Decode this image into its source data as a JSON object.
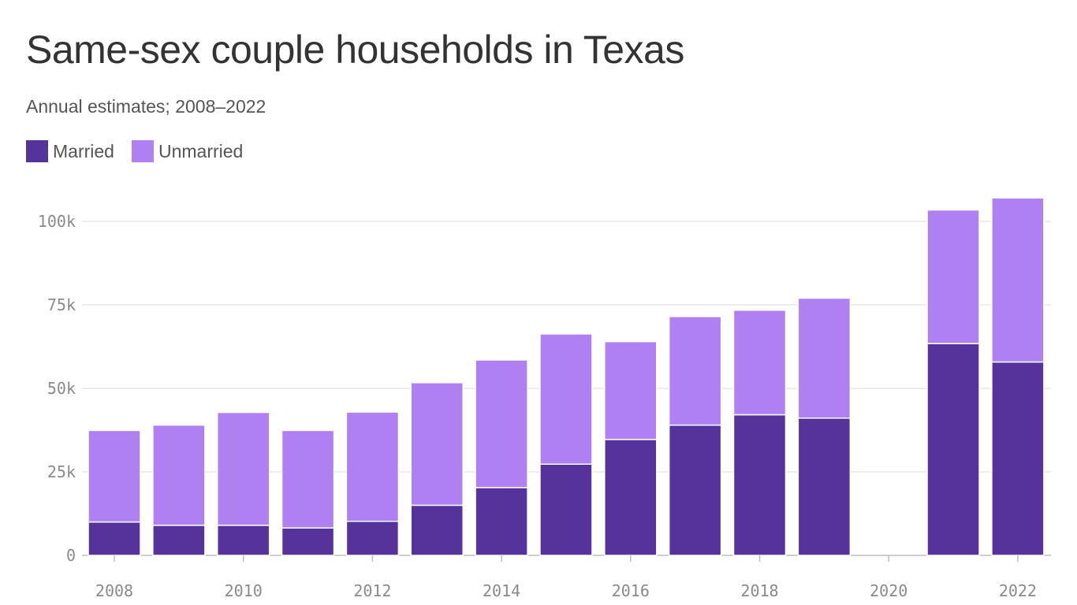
{
  "header": {
    "title": "Same-sex couple households in Texas",
    "subtitle": "Annual estimates; 2008–2022"
  },
  "legend": [
    {
      "label": "Married",
      "color": "#56339a"
    },
    {
      "label": "Unmarried",
      "color": "#af80f2"
    }
  ],
  "chart_data": {
    "type": "bar",
    "stacked": true,
    "title": "Same-sex couple households in Texas",
    "subtitle": "Annual estimates; 2008–2022",
    "xlabel": "",
    "ylabel": "",
    "categories": [
      2008,
      2009,
      2010,
      2011,
      2012,
      2013,
      2014,
      2015,
      2016,
      2017,
      2018,
      2019,
      2020,
      2021,
      2022
    ],
    "series": [
      {
        "name": "Married",
        "color": "#56339a",
        "values": [
          10000,
          9000,
          9000,
          8200,
          10200,
          15000,
          20300,
          27300,
          34700,
          39000,
          42100,
          41100,
          null,
          63400,
          57900
        ]
      },
      {
        "name": "Unmarried",
        "color": "#af80f2",
        "values": [
          27400,
          30000,
          33800,
          29200,
          32700,
          36700,
          38200,
          39000,
          29300,
          32500,
          31300,
          35900,
          null,
          40000,
          49100
        ]
      }
    ],
    "ylim": [
      0,
      107000
    ],
    "yticks": [
      0,
      25000,
      50000,
      75000,
      100000
    ],
    "ytick_labels": [
      "0",
      "25k",
      "50k",
      "75k",
      "100k"
    ],
    "xticks": [
      2008,
      2010,
      2012,
      2014,
      2016,
      2018,
      2020,
      2022
    ],
    "xtick_labels": [
      "2008",
      "2010",
      "2012",
      "2014",
      "2016",
      "2018",
      "2020",
      "2022"
    ],
    "grid": true,
    "legend_position": "top-left"
  }
}
